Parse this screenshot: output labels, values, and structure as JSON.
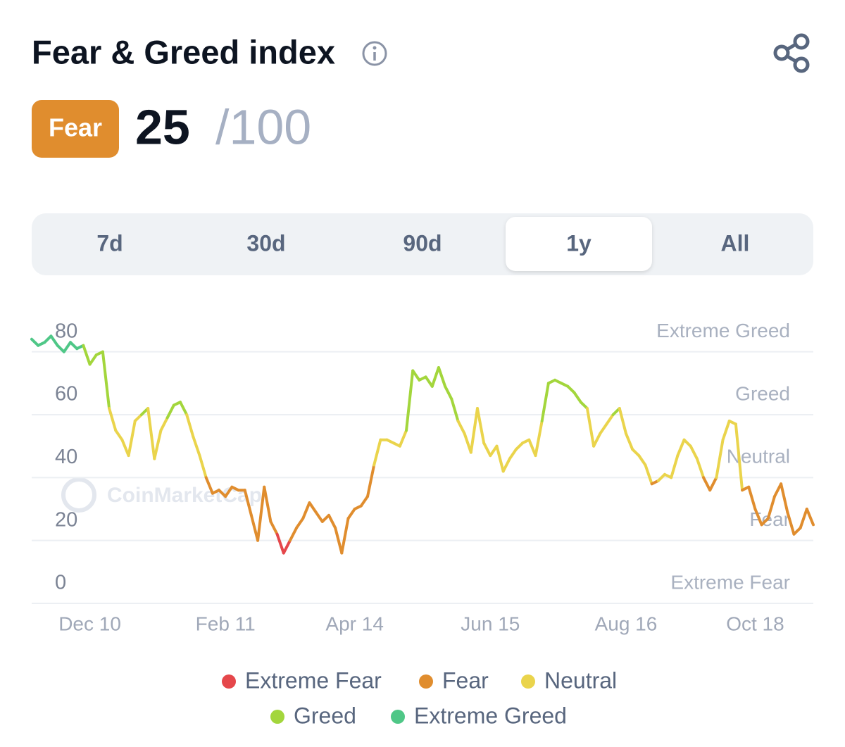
{
  "header": {
    "title": "Fear & Greed index"
  },
  "current": {
    "label": "Fear",
    "value": 25,
    "max_label": "/100"
  },
  "tabs": [
    "7d",
    "30d",
    "90d",
    "1y",
    "All"
  ],
  "active_tab": "1y",
  "chart_data": {
    "type": "line",
    "watermark": "CoinMarketCap",
    "categories": [
      null,
      null,
      null,
      null,
      null,
      null,
      null,
      null,
      null,
      "Dec 10",
      null,
      null,
      null,
      null,
      null,
      null,
      null,
      null,
      null,
      null,
      null,
      null,
      null,
      null,
      null,
      null,
      null,
      null,
      null,
      null,
      "Feb 11",
      null,
      null,
      null,
      null,
      null,
      null,
      null,
      null,
      null,
      null,
      null,
      null,
      null,
      null,
      null,
      null,
      null,
      null,
      null,
      "Apr 14",
      null,
      null,
      null,
      null,
      null,
      null,
      null,
      null,
      null,
      null,
      null,
      null,
      null,
      null,
      null,
      null,
      null,
      null,
      null,
      null,
      "Jun 15",
      null,
      null,
      null,
      null,
      null,
      null,
      null,
      null,
      null,
      null,
      null,
      null,
      null,
      null,
      null,
      null,
      null,
      null,
      null,
      null,
      "Aug 16",
      null,
      null,
      null,
      null,
      null,
      null,
      null,
      null,
      null,
      null,
      null,
      null,
      null,
      null,
      null,
      null,
      null,
      null,
      null,
      "Oct 18",
      null,
      null,
      null,
      null,
      null,
      null,
      null,
      null,
      null
    ],
    "values": [
      84,
      82,
      83,
      85,
      82,
      80,
      83,
      81,
      82,
      76,
      79,
      80,
      62,
      55,
      52,
      47,
      58,
      60,
      62,
      46,
      55,
      59,
      63,
      64,
      60,
      53,
      47,
      40,
      35,
      36,
      34,
      37,
      36,
      36,
      28,
      20,
      37,
      26,
      22,
      16,
      20,
      24,
      27,
      32,
      29,
      26,
      28,
      24,
      16,
      27,
      30,
      31,
      34,
      44,
      52,
      52,
      51,
      50,
      55,
      74,
      71,
      72,
      69,
      75,
      69,
      65,
      58,
      54,
      48,
      62,
      51,
      47,
      50,
      42,
      46,
      49,
      51,
      52,
      47,
      58,
      70,
      71,
      70,
      69,
      67,
      64,
      62,
      50,
      54,
      57,
      60,
      62,
      54,
      49,
      47,
      44,
      38,
      39,
      41,
      40,
      47,
      52,
      50,
      46,
      40,
      36,
      40,
      52,
      58,
      57,
      36,
      37,
      30,
      25,
      27,
      34,
      38,
      29,
      22,
      24,
      30,
      25
    ],
    "ylim": [
      0,
      90
    ],
    "yticks": [
      0,
      20,
      40,
      60,
      80
    ],
    "grid": true,
    "zones": [
      {
        "name": "Extreme Fear",
        "color": "#e5474b"
      },
      {
        "name": "Fear",
        "color": "#e08d2e"
      },
      {
        "name": "Neutral",
        "color": "#ead44c"
      },
      {
        "name": "Greed",
        "color": "#a3d63c"
      },
      {
        "name": "Extreme Greed",
        "color": "#4fc787"
      }
    ]
  }
}
